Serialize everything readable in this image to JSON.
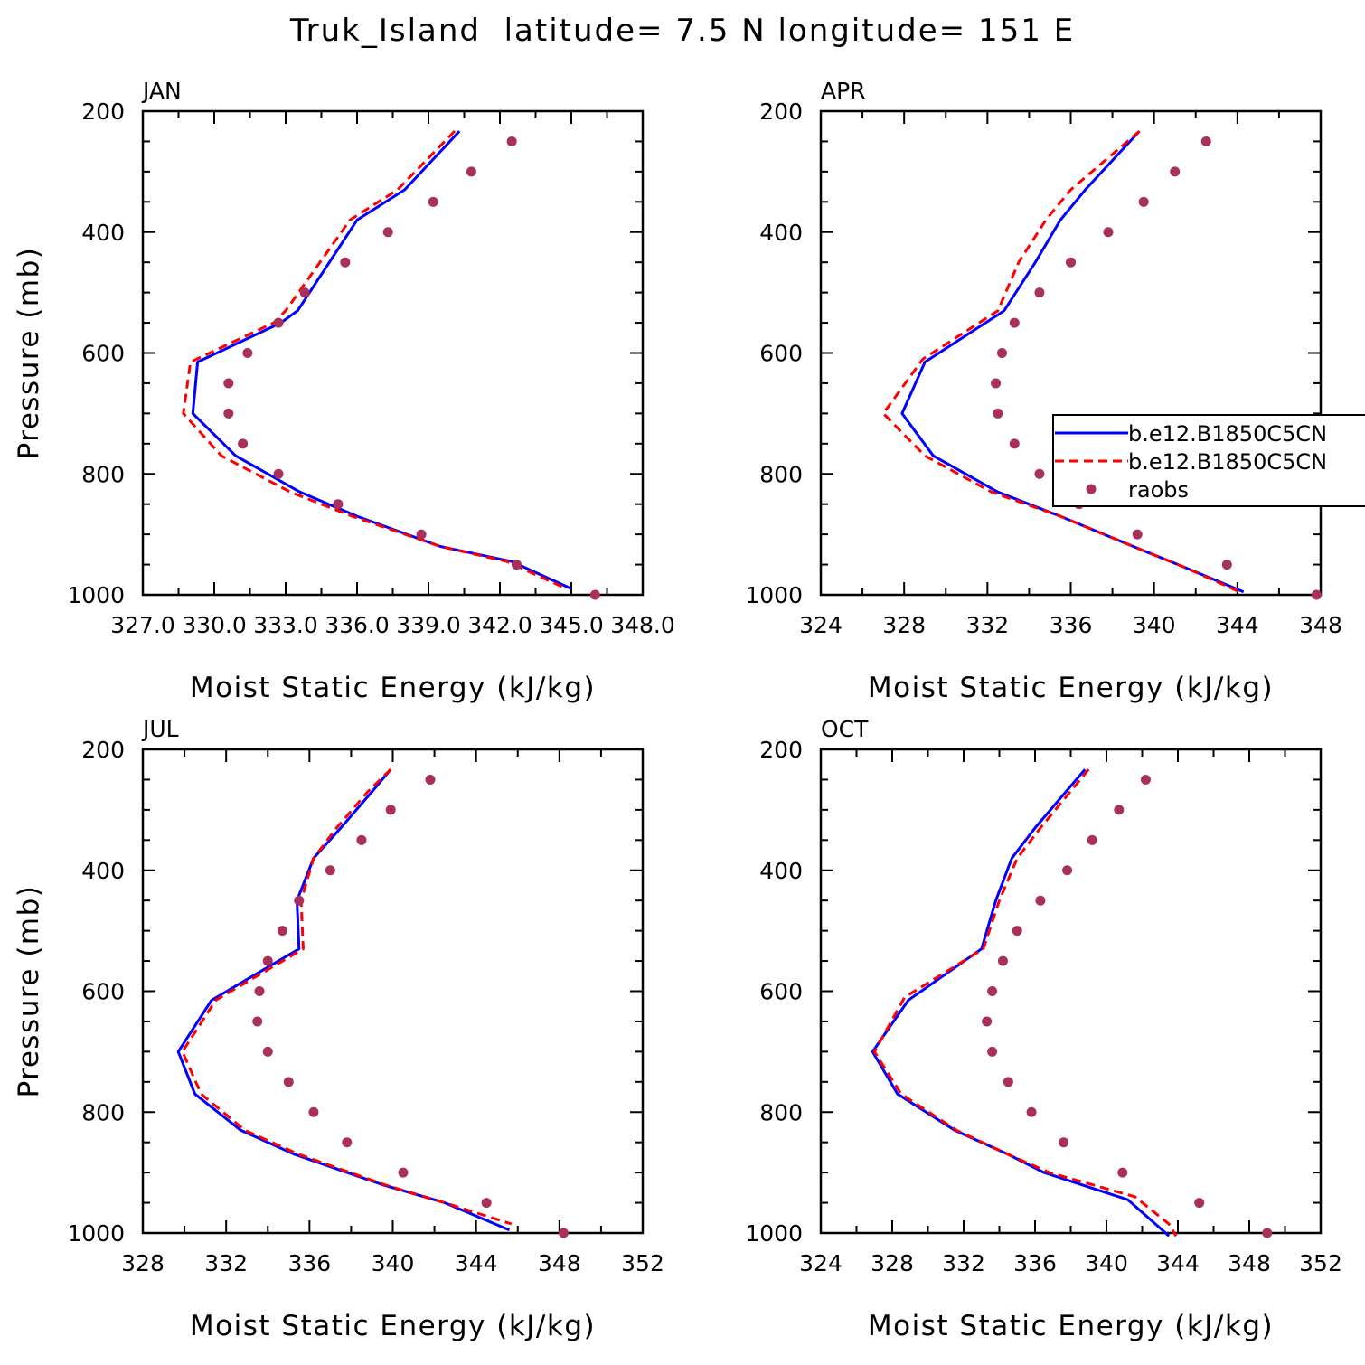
{
  "title": "Truk_Island  latitude= 7.5 N longitude= 151 E",
  "colors": {
    "series1": "#0000ff",
    "series2": "#ff0000",
    "raobs": "#a8305a",
    "axis": "#000000"
  },
  "legend": [
    {
      "label": "b.e12.B1850C5CN",
      "style": "solid"
    },
    {
      "label": "b.e12.B1850C5CN",
      "style": "dashed"
    },
    {
      "label": "raobs",
      "style": "marker"
    }
  ],
  "chart_data": [
    {
      "type": "line",
      "title": "JAN",
      "xlabel": "Moist Static Energy (kJ/kg)",
      "ylabel": "Pressure (mb)",
      "xlim": [
        327.0,
        348.0
      ],
      "ylim": [
        1000,
        200
      ],
      "x_ticks": [
        "327.0",
        "330.0",
        "333.0",
        "336.0",
        "339.0",
        "342.0",
        "345.0",
        "348.0"
      ],
      "x_tick_values": [
        327,
        330,
        333,
        336,
        339,
        342,
        345,
        348
      ],
      "y_ticks": [
        200,
        400,
        600,
        800,
        1000
      ],
      "series": [
        {
          "name": "b.e12.B1850C5CN",
          "style": "solid",
          "pressure": [
            233,
            330,
            380,
            530,
            550,
            615,
            700,
            770,
            830,
            870,
            920,
            945,
            990
          ],
          "values": [
            340.3,
            338.0,
            336.0,
            333.5,
            332.8,
            329.3,
            329.1,
            330.9,
            333.6,
            336.0,
            339.5,
            342.5,
            345.0
          ]
        },
        {
          "name": "b.e12.B1850C5CN",
          "style": "dashed",
          "pressure": [
            233,
            330,
            380,
            530,
            550,
            615,
            700,
            770,
            830,
            870,
            920,
            945,
            990
          ],
          "values": [
            340.1,
            337.7,
            335.7,
            333.0,
            332.5,
            329.0,
            328.7,
            330.3,
            333.2,
            335.8,
            339.5,
            342.3,
            344.8
          ]
        },
        {
          "name": "raobs",
          "style": "marker",
          "pressure": [
            250,
            300,
            350,
            400,
            450,
            500,
            550,
            600,
            650,
            700,
            750,
            800,
            850,
            900,
            950,
            1000
          ],
          "values": [
            342.5,
            340.8,
            339.2,
            337.3,
            335.5,
            333.8,
            332.7,
            331.4,
            330.6,
            330.6,
            331.2,
            332.7,
            335.2,
            338.7,
            342.7,
            346.0
          ]
        }
      ]
    },
    {
      "type": "line",
      "title": "APR",
      "xlabel": "Moist Static Energy (kJ/kg)",
      "ylabel": "",
      "xlim": [
        324,
        348
      ],
      "ylim": [
        1000,
        200
      ],
      "x_ticks": [
        "324",
        "328",
        "332",
        "336",
        "340",
        "344",
        "348"
      ],
      "x_tick_values": [
        324,
        328,
        332,
        336,
        340,
        344,
        348
      ],
      "y_ticks": [
        200,
        400,
        600,
        800,
        1000
      ],
      "series": [
        {
          "name": "b.e12.B1850C5CN",
          "style": "solid",
          "pressure": [
            233,
            330,
            380,
            450,
            530,
            615,
            700,
            770,
            830,
            870,
            920,
            955,
            995
          ],
          "values": [
            339.3,
            336.7,
            335.5,
            334.3,
            332.8,
            329.0,
            327.9,
            329.4,
            332.5,
            335.5,
            339.0,
            341.5,
            344.3
          ]
        },
        {
          "name": "b.e12.B1850C5CN",
          "style": "dashed",
          "pressure": [
            233,
            330,
            380,
            450,
            530,
            610,
            700,
            770,
            830,
            870,
            920,
            955,
            995
          ],
          "values": [
            339.3,
            336.0,
            334.8,
            333.5,
            332.5,
            328.9,
            327.0,
            329.0,
            332.2,
            335.5,
            339.0,
            341.5,
            344.1
          ]
        },
        {
          "name": "raobs",
          "style": "marker",
          "pressure": [
            250,
            300,
            350,
            400,
            450,
            500,
            550,
            600,
            650,
            700,
            750,
            800,
            850,
            900,
            950,
            1000
          ],
          "values": [
            342.5,
            341.0,
            339.5,
            337.8,
            336.0,
            334.5,
            333.3,
            332.7,
            332.4,
            332.5,
            333.3,
            334.5,
            336.4,
            339.2,
            343.5,
            347.8
          ]
        }
      ]
    },
    {
      "type": "line",
      "title": "JUL",
      "xlabel": "Moist Static Energy (kJ/kg)",
      "ylabel": "Pressure (mb)",
      "xlim": [
        328,
        352
      ],
      "ylim": [
        1000,
        200
      ],
      "x_ticks": [
        "328",
        "332",
        "336",
        "340",
        "344",
        "348",
        "352"
      ],
      "x_tick_values": [
        328,
        332,
        336,
        340,
        344,
        348,
        352
      ],
      "y_ticks": [
        200,
        400,
        600,
        800,
        1000
      ],
      "series": [
        {
          "name": "b.e12.B1850C5CN",
          "style": "solid",
          "pressure": [
            233,
            270,
            330,
            380,
            450,
            530,
            615,
            700,
            770,
            830,
            870,
            920,
            950,
            995
          ],
          "values": [
            339.9,
            339.0,
            337.5,
            336.2,
            335.4,
            335.5,
            331.3,
            329.7,
            330.5,
            332.7,
            335.3,
            339.5,
            342.5,
            345.6
          ]
        },
        {
          "name": "b.e12.B1850C5CN",
          "style": "dashed",
          "pressure": [
            233,
            270,
            330,
            380,
            450,
            530,
            615,
            700,
            770,
            830,
            870,
            920,
            950,
            985
          ],
          "values": [
            339.9,
            338.8,
            337.3,
            336.2,
            335.6,
            335.7,
            331.5,
            329.9,
            330.8,
            332.9,
            335.5,
            339.6,
            342.5,
            345.7
          ]
        },
        {
          "name": "raobs",
          "style": "marker",
          "pressure": [
            250,
            300,
            350,
            400,
            450,
            500,
            550,
            600,
            650,
            700,
            750,
            800,
            850,
            900,
            950,
            1000
          ],
          "values": [
            341.8,
            339.9,
            338.5,
            337.0,
            335.5,
            334.7,
            334.0,
            333.6,
            333.5,
            334.0,
            335.0,
            336.2,
            337.8,
            340.5,
            344.5,
            348.2
          ]
        }
      ]
    },
    {
      "type": "line",
      "title": "OCT",
      "xlabel": "Moist Static Energy (kJ/kg)",
      "ylabel": "",
      "xlim": [
        324,
        352
      ],
      "ylim": [
        1000,
        200
      ],
      "x_ticks": [
        "324",
        "328",
        "332",
        "336",
        "340",
        "344",
        "348",
        "352"
      ],
      "x_tick_values": [
        324,
        328,
        332,
        336,
        340,
        344,
        348,
        352
      ],
      "y_ticks": [
        200,
        400,
        600,
        800,
        1000
      ],
      "series": [
        {
          "name": "b.e12.B1850C5CN",
          "style": "solid",
          "pressure": [
            233,
            330,
            380,
            450,
            530,
            615,
            700,
            770,
            830,
            870,
            900,
            945,
            1005
          ],
          "values": [
            338.8,
            336.0,
            334.7,
            333.8,
            333.0,
            328.9,
            326.9,
            328.3,
            331.5,
            334.5,
            336.5,
            341.2,
            343.5
          ]
        },
        {
          "name": "b.e12.B1850C5CN",
          "style": "dashed",
          "pressure": [
            233,
            330,
            380,
            450,
            530,
            610,
            700,
            770,
            830,
            870,
            900,
            940,
            985,
            1005
          ],
          "values": [
            339.0,
            336.3,
            335.0,
            334.0,
            333.1,
            328.7,
            327.0,
            328.5,
            331.6,
            334.5,
            336.8,
            341.6,
            343.5,
            343.9
          ]
        },
        {
          "name": "raobs",
          "style": "marker",
          "pressure": [
            250,
            300,
            350,
            400,
            450,
            500,
            550,
            600,
            650,
            700,
            750,
            800,
            850,
            900,
            950,
            1000
          ],
          "values": [
            342.2,
            340.7,
            339.2,
            337.8,
            336.3,
            335.0,
            334.2,
            333.6,
            333.3,
            333.6,
            334.5,
            335.8,
            337.6,
            340.9,
            345.2,
            349.0
          ]
        }
      ]
    }
  ]
}
